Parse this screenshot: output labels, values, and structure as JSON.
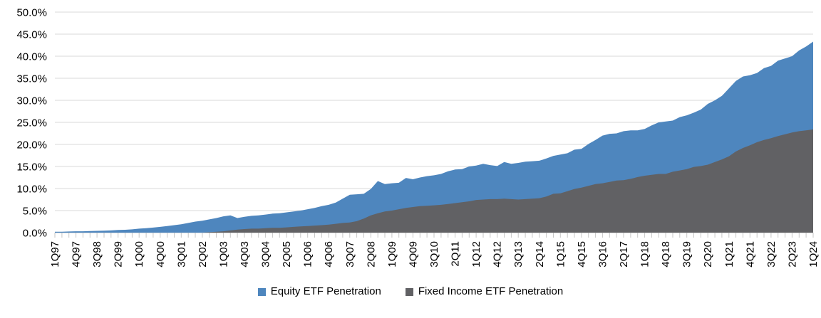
{
  "chart_data": {
    "type": "area",
    "title": "",
    "xlabel": "",
    "ylabel": "",
    "grid": true,
    "legend_position": "bottom",
    "overlapping_series": true,
    "ylim": [
      0,
      50
    ],
    "y_tick_step": 5,
    "y_tick_labels": [
      "0.0%",
      "5.0%",
      "10.0%",
      "15.0%",
      "20.0%",
      "25.0%",
      "30.0%",
      "35.0%",
      "40.0%",
      "45.0%",
      "50.0%"
    ],
    "x_tick_label_every": 3,
    "x_categories": [
      "1Q97",
      "2Q97",
      "3Q97",
      "4Q97",
      "1Q98",
      "2Q98",
      "3Q98",
      "4Q98",
      "1Q99",
      "2Q99",
      "3Q99",
      "4Q99",
      "1Q00",
      "2Q00",
      "3Q00",
      "4Q00",
      "1Q01",
      "2Q01",
      "3Q01",
      "4Q01",
      "1Q02",
      "2Q02",
      "3Q02",
      "4Q02",
      "1Q03",
      "2Q03",
      "3Q03",
      "4Q03",
      "1Q04",
      "2Q04",
      "3Q04",
      "4Q04",
      "1Q05",
      "2Q05",
      "3Q05",
      "4Q05",
      "1Q06",
      "2Q06",
      "3Q06",
      "4Q06",
      "1Q07",
      "2Q07",
      "3Q07",
      "4Q07",
      "1Q08",
      "2Q08",
      "3Q08",
      "4Q08",
      "1Q09",
      "2Q09",
      "3Q09",
      "4Q09",
      "1Q10",
      "2Q10",
      "3Q10",
      "4Q10",
      "1Q11",
      "2Q11",
      "3Q11",
      "4Q11",
      "1Q12",
      "2Q12",
      "3Q12",
      "4Q12",
      "1Q13",
      "2Q13",
      "3Q13",
      "4Q13",
      "1Q14",
      "2Q14",
      "3Q14",
      "4Q14",
      "1Q15",
      "2Q15",
      "3Q15",
      "4Q15",
      "1Q16",
      "2Q16",
      "3Q16",
      "4Q16",
      "1Q17",
      "2Q17",
      "3Q17",
      "4Q17",
      "1Q18",
      "2Q18",
      "3Q18",
      "4Q18",
      "1Q19",
      "2Q19",
      "3Q19",
      "4Q19",
      "1Q20",
      "2Q20",
      "3Q20",
      "4Q20",
      "1Q21",
      "2Q21",
      "3Q21",
      "4Q21",
      "1Q22",
      "2Q22",
      "3Q22",
      "4Q22",
      "1Q23",
      "2Q23",
      "3Q23",
      "4Q23",
      "1Q24"
    ],
    "series": [
      {
        "name": "Equity ETF Penetration",
        "color": "#4E86BE",
        "values": [
          0.2,
          0.2,
          0.25,
          0.3,
          0.3,
          0.35,
          0.4,
          0.45,
          0.5,
          0.6,
          0.65,
          0.75,
          0.9,
          1.0,
          1.15,
          1.3,
          1.5,
          1.7,
          1.9,
          2.2,
          2.5,
          2.7,
          3.0,
          3.3,
          3.7,
          3.9,
          3.3,
          3.6,
          3.8,
          3.9,
          4.1,
          4.3,
          4.4,
          4.6,
          4.8,
          5.0,
          5.3,
          5.6,
          6.0,
          6.3,
          6.8,
          7.7,
          8.6,
          8.7,
          8.8,
          9.9,
          11.7,
          11.0,
          11.2,
          11.3,
          12.4,
          12.1,
          12.5,
          12.8,
          13.0,
          13.3,
          13.9,
          14.3,
          14.4,
          15.0,
          15.2,
          15.6,
          15.3,
          15.1,
          16.0,
          15.6,
          15.8,
          16.1,
          16.2,
          16.3,
          16.8,
          17.4,
          17.7,
          18.0,
          18.8,
          19.0,
          20.1,
          21.0,
          22.0,
          22.4,
          22.5,
          23.0,
          23.2,
          23.2,
          23.5,
          24.3,
          25.0,
          25.2,
          25.4,
          26.2,
          26.6,
          27.2,
          27.9,
          29.2,
          30.0,
          31.0,
          32.7,
          34.4,
          35.4,
          35.7,
          36.2,
          37.3,
          37.8,
          39.0,
          39.5,
          40.0,
          41.3,
          42.2,
          43.3
        ]
      },
      {
        "name": "Fixed Income ETF Penetration",
        "color": "#616164",
        "values": [
          0,
          0,
          0,
          0,
          0,
          0,
          0,
          0,
          0,
          0,
          0,
          0,
          0,
          0,
          0,
          0,
          0,
          0,
          0,
          0,
          0,
          0,
          0.1,
          0.2,
          0.3,
          0.5,
          0.7,
          0.8,
          0.9,
          0.9,
          1.0,
          1.1,
          1.1,
          1.2,
          1.3,
          1.4,
          1.5,
          1.6,
          1.7,
          1.8,
          2.0,
          2.2,
          2.3,
          2.6,
          3.2,
          3.9,
          4.4,
          4.8,
          5.0,
          5.3,
          5.6,
          5.8,
          6.0,
          6.1,
          6.2,
          6.3,
          6.5,
          6.7,
          6.9,
          7.1,
          7.4,
          7.5,
          7.6,
          7.6,
          7.7,
          7.6,
          7.5,
          7.6,
          7.7,
          7.8,
          8.2,
          8.8,
          8.9,
          9.4,
          9.9,
          10.2,
          10.6,
          11.0,
          11.2,
          11.5,
          11.8,
          11.9,
          12.2,
          12.6,
          12.9,
          13.1,
          13.3,
          13.3,
          13.8,
          14.1,
          14.4,
          14.9,
          15.1,
          15.4,
          16.0,
          16.6,
          17.3,
          18.4,
          19.2,
          19.8,
          20.5,
          21.0,
          21.4,
          21.9,
          22.3,
          22.7,
          23.0,
          23.2,
          23.4
        ]
      }
    ],
    "colors": {
      "gridline": "#D9D9D9",
      "axis_line": "#C6C6C6",
      "tick": "#C6C6C6",
      "axis_text": "#000000"
    }
  },
  "legend": {
    "items": [
      {
        "label": "Equity ETF Penetration",
        "color": "#4E86BE"
      },
      {
        "label": "Fixed Income ETF Penetration",
        "color": "#616164"
      }
    ]
  }
}
